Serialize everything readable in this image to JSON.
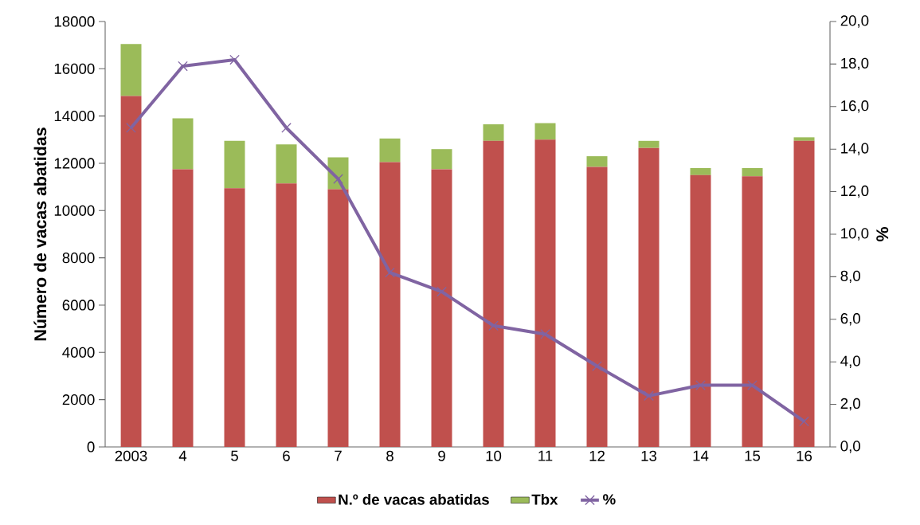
{
  "chart_data": {
    "type": "bar",
    "stacked": true,
    "categories": [
      "2003",
      "4",
      "5",
      "6",
      "7",
      "8",
      "9",
      "10",
      "11",
      "12",
      "13",
      "14",
      "15",
      "16"
    ],
    "ylabel": "Número de vacas abatidas",
    "y2label": "%",
    "ylim": [
      0,
      18000
    ],
    "yticks": [
      0,
      2000,
      4000,
      6000,
      8000,
      10000,
      12000,
      14000,
      16000,
      18000
    ],
    "y2lim": [
      0,
      20
    ],
    "y2ticks": [
      {
        "value": 0,
        "label": "0,0"
      },
      {
        "value": 2,
        "label": "2,0"
      },
      {
        "value": 4,
        "label": "4,0"
      },
      {
        "value": 6,
        "label": "6,0"
      },
      {
        "value": 8,
        "label": "8,0"
      },
      {
        "value": 10,
        "label": "10,0"
      },
      {
        "value": 12,
        "label": "12,0"
      },
      {
        "value": 14,
        "label": "14,0"
      },
      {
        "value": 16,
        "label": "16,0"
      },
      {
        "value": 18,
        "label": "18,0"
      },
      {
        "value": 20,
        "label": "20,0"
      }
    ],
    "legend": "bottom",
    "series": [
      {
        "name": "N.º de vacas abatidas",
        "color": "#c0504d",
        "values": [
          14850,
          11750,
          10950,
          11150,
          10900,
          12050,
          11750,
          12950,
          13000,
          11850,
          12650,
          11500,
          11450,
          12950
        ]
      },
      {
        "name": "Tbx",
        "color": "#9bbb59",
        "values": [
          2200,
          2150,
          2000,
          1650,
          1350,
          1000,
          850,
          700,
          700,
          450,
          300,
          300,
          350,
          150
        ]
      },
      {
        "name": "%",
        "type": "line",
        "axis": "y2",
        "color": "#8064a2",
        "marker": "cross",
        "values": [
          15.0,
          17.9,
          18.2,
          15.0,
          12.6,
          8.2,
          7.3,
          5.7,
          5.3,
          3.8,
          2.4,
          2.9,
          2.9,
          1.2
        ]
      }
    ]
  }
}
